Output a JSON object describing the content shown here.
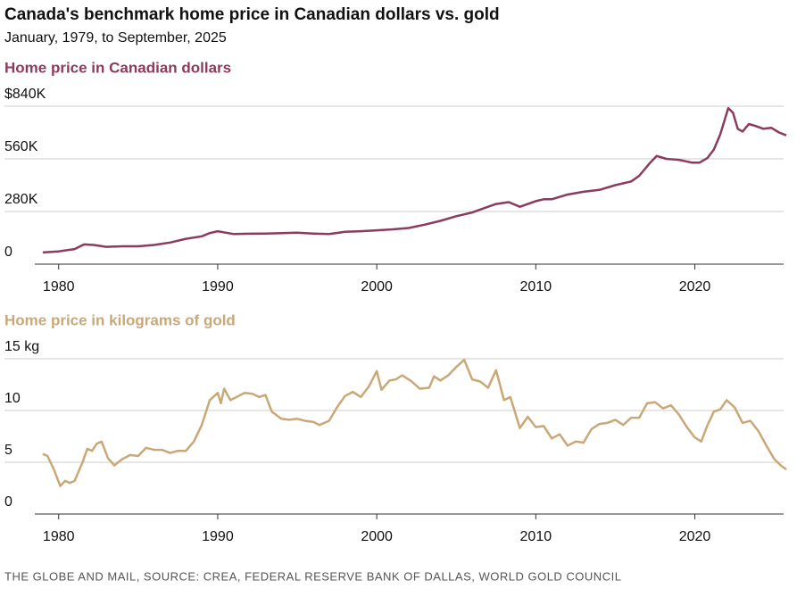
{
  "title": "Canada's benchmark home price in Canadian dollars vs. gold",
  "subtitle": "January, 1979, to September, 2025",
  "source": "THE GLOBE AND MAIL, SOURCE: CREA, FEDERAL RESERVE BANK OF DALLAS, WORLD GOLD COUNCIL",
  "chart_data": [
    {
      "type": "line",
      "title": "Home price in Canadian dollars",
      "color": "#8a3b5e",
      "grid": true,
      "xlim": [
        1978.5,
        2025.75
      ],
      "xticks": [
        1980,
        1990,
        2000,
        2010,
        2020
      ],
      "ylim": [
        0,
        840000
      ],
      "yticks": [
        {
          "value": 840000,
          "label": "$840K"
        },
        {
          "value": 560000,
          "label": "560K"
        },
        {
          "value": 280000,
          "label": "280K"
        },
        0
      ],
      "x": [
        1979,
        1980,
        1981,
        1981.6,
        1982.2,
        1983,
        1984,
        1985,
        1986,
        1987,
        1988,
        1989,
        1989.5,
        1990,
        1991,
        1992,
        1993,
        1994,
        1995,
        1996,
        1997,
        1998,
        1999,
        2000,
        2001,
        2002,
        2003,
        2004,
        2005,
        2006,
        2007,
        2007.5,
        2008.3,
        2009,
        2010,
        2010.5,
        2011,
        2012,
        2013,
        2014,
        2015,
        2016,
        2016.5,
        2017.2,
        2017.6,
        2018.2,
        2019,
        2019.8,
        2020.3,
        2020.8,
        2021.2,
        2021.6,
        2022.1,
        2022.4,
        2022.7,
        2023,
        2023.4,
        2023.8,
        2024.3,
        2024.8,
        2025.3,
        2025.75
      ],
      "values": [
        62000,
        68000,
        80000,
        105000,
        102000,
        92000,
        95000,
        95000,
        102000,
        115000,
        135000,
        148000,
        165000,
        175000,
        160000,
        162000,
        163000,
        165000,
        167000,
        163000,
        160000,
        172000,
        175000,
        180000,
        185000,
        192000,
        210000,
        230000,
        255000,
        275000,
        305000,
        320000,
        330000,
        305000,
        335000,
        345000,
        345000,
        370000,
        385000,
        395000,
        420000,
        440000,
        470000,
        540000,
        575000,
        560000,
        555000,
        540000,
        540000,
        565000,
        610000,
        690000,
        830000,
        805000,
        720000,
        705000,
        745000,
        735000,
        720000,
        725000,
        700000,
        685000
      ]
    },
    {
      "type": "line",
      "title": "Home price in kilograms of gold",
      "color": "#c9a878",
      "grid": true,
      "xlim": [
        1978.5,
        2025.75
      ],
      "xticks": [
        1980,
        1990,
        2000,
        2010,
        2020
      ],
      "ylim": [
        0,
        15
      ],
      "yticks": [
        {
          "value": 15,
          "label": "15 kg"
        },
        10,
        5,
        0
      ],
      "x": [
        1979,
        1979.3,
        1979.7,
        1980.1,
        1980.4,
        1980.7,
        1981,
        1981.5,
        1981.8,
        1982.1,
        1982.4,
        1982.7,
        1983.1,
        1983.5,
        1984,
        1984.5,
        1985,
        1985.5,
        1986,
        1986.5,
        1987,
        1987.5,
        1988,
        1988.5,
        1989,
        1989.5,
        1990,
        1990.2,
        1990.4,
        1990.8,
        1991.3,
        1991.7,
        1992.2,
        1992.6,
        1993,
        1993.4,
        1994,
        1994.5,
        1995,
        1995.5,
        1996,
        1996.4,
        1997,
        1997.5,
        1998,
        1998.5,
        1999,
        1999.5,
        2000,
        2000.3,
        2000.8,
        2001.2,
        2001.6,
        2002.2,
        2002.7,
        2003.3,
        2003.6,
        2004,
        2004.5,
        2005,
        2005.5,
        2006,
        2006.5,
        2007,
        2007.5,
        2008,
        2008.4,
        2009,
        2009.5,
        2010,
        2010.5,
        2011,
        2011.5,
        2012,
        2012.5,
        2013,
        2013.5,
        2014,
        2014.5,
        2015,
        2015.5,
        2016,
        2016.5,
        2017,
        2017.5,
        2018,
        2018.5,
        2019,
        2019.5,
        2020,
        2020.4,
        2020.8,
        2021.2,
        2021.6,
        2022,
        2022.5,
        2023,
        2023.5,
        2024,
        2024.5,
        2025,
        2025.4,
        2025.75
      ],
      "values": [
        5.8,
        5.6,
        4.3,
        2.7,
        3.2,
        3.0,
        3.2,
        5.0,
        6.3,
        6.1,
        6.8,
        7.0,
        5.4,
        4.7,
        5.3,
        5.7,
        5.6,
        6.4,
        6.2,
        6.2,
        5.9,
        6.1,
        6.1,
        7.0,
        8.6,
        11.0,
        11.7,
        10.7,
        12.1,
        11.0,
        11.4,
        11.7,
        11.6,
        11.3,
        11.5,
        9.9,
        9.2,
        9.1,
        9.2,
        9.0,
        8.9,
        8.6,
        9.0,
        10.3,
        11.4,
        11.8,
        11.3,
        12.3,
        13.8,
        12.0,
        12.9,
        13.0,
        13.4,
        12.8,
        12.1,
        12.2,
        13.3,
        12.9,
        13.4,
        14.2,
        14.9,
        13.0,
        12.8,
        12.2,
        13.9,
        11.0,
        11.3,
        8.3,
        9.4,
        8.4,
        8.5,
        7.3,
        7.7,
        6.6,
        7.0,
        6.9,
        8.2,
        8.7,
        8.8,
        9.1,
        8.6,
        9.3,
        9.3,
        10.7,
        10.8,
        10.2,
        10.5,
        9.6,
        8.4,
        7.4,
        7.0,
        8.6,
        9.9,
        10.1,
        11.0,
        10.3,
        8.8,
        9.0,
        8.0,
        6.6,
        5.3,
        4.7,
        4.3
      ]
    }
  ]
}
